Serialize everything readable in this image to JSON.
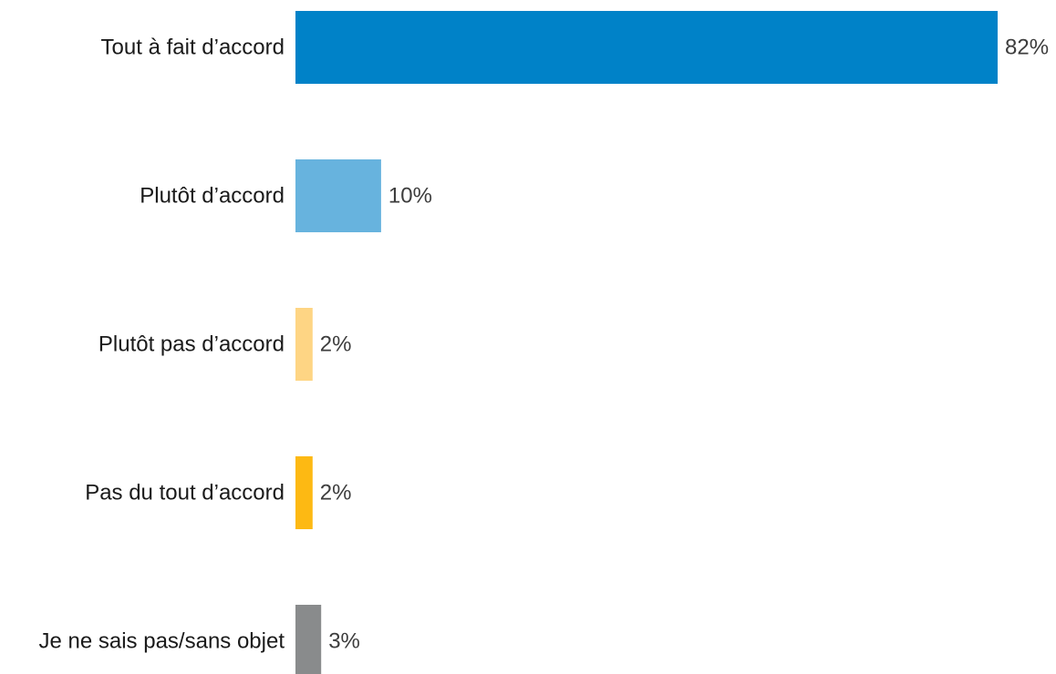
{
  "chart_data": {
    "type": "bar",
    "orientation": "horizontal",
    "categories": [
      "Tout à fait d’accord",
      "Plutôt d’accord",
      "Plutôt pas d’accord",
      "Pas du tout d’accord",
      "Je ne sais pas/sans objet"
    ],
    "values": [
      82,
      10,
      2,
      2,
      3
    ],
    "value_labels": [
      "82%",
      "10%",
      "2%",
      "2%",
      "3%"
    ],
    "colors": [
      "#0082c8",
      "#67b3de",
      "#fed584",
      "#fdb913",
      "#898b8c"
    ],
    "title": "",
    "xlabel": "",
    "ylabel": "",
    "xlim": [
      0,
      82
    ],
    "unit": "%",
    "grid": false,
    "legend": "none"
  }
}
